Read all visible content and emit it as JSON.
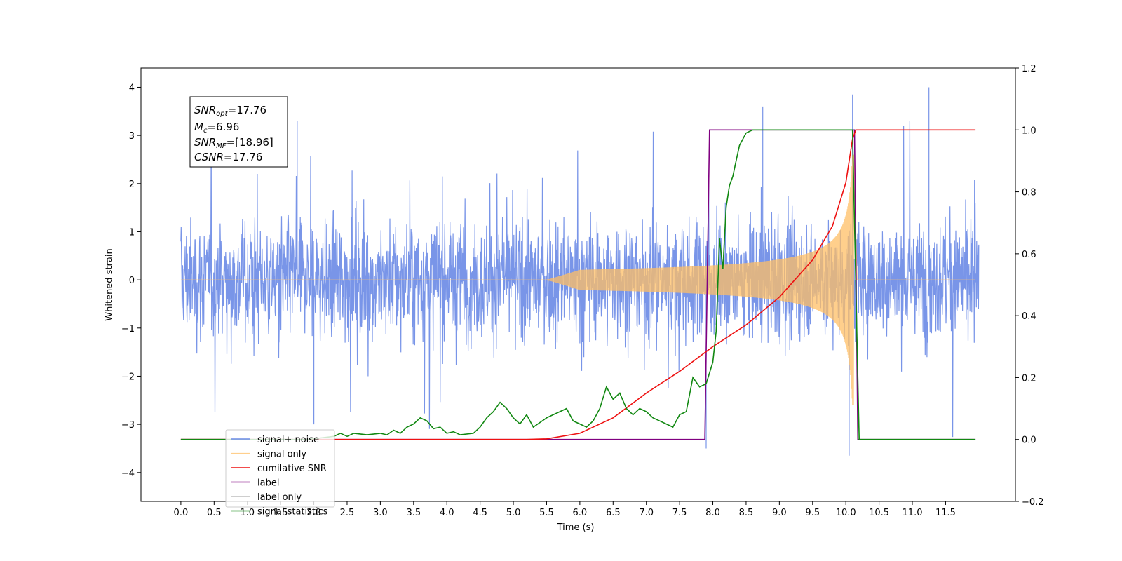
{
  "chart_data": {
    "type": "line",
    "xlabel": "Time (s)",
    "ylabel": "Whitened strain",
    "xlim": [
      -0.6,
      12.55
    ],
    "ylim": [
      -4.6,
      4.4
    ],
    "y2lim": [
      -0.2,
      1.2
    ],
    "grid": false,
    "legend_position": "lower-left",
    "x_ticks": [
      "0.0",
      "0.5",
      "1.0",
      "1.5",
      "2.0",
      "2.5",
      "3.0",
      "3.5",
      "4.0",
      "4.5",
      "5.0",
      "5.5",
      "6.0",
      "6.5",
      "7.0",
      "7.5",
      "8.0",
      "8.5",
      "9.0",
      "9.5",
      "10.0",
      "10.5",
      "11.0",
      "11.5"
    ],
    "y_ticks": [
      "4",
      "3",
      "2",
      "1",
      "0",
      "−1",
      "−2",
      "−3",
      "−4"
    ],
    "y2_ticks": [
      "1.2",
      "1.0",
      "0.8",
      "0.6",
      "0.4",
      "0.2",
      "0.0",
      "−0.2"
    ],
    "annotation": {
      "line1": {
        "main": "SNR",
        "sub": "opt",
        "rest": "=17.76"
      },
      "line2": {
        "main": "M",
        "sub": "c",
        "rest": "=6.96"
      },
      "line3": {
        "main": "SNR",
        "sub": "MF",
        "rest": "=[18.96]"
      },
      "line4": {
        "main": "CSNR",
        "sub": "",
        "rest": "=17.76"
      }
    },
    "series": [
      {
        "name": "signal+ noise",
        "color": "#6a8ae6",
        "axis": "left",
        "description_range": [
          0,
          12
        ],
        "amplitude_sigma": 1.0,
        "spikes": [
          [
            1.75,
            3.3
          ],
          [
            8.75,
            3.6
          ],
          [
            10.1,
            3.85
          ],
          [
            11.25,
            4.0
          ],
          [
            10.05,
            -3.65
          ],
          [
            7.9,
            -3.5
          ],
          [
            2.0,
            -3.0
          ]
        ]
      },
      {
        "name": "signal only",
        "color": "#ffbf66",
        "axis": "left",
        "start": 5.5,
        "merger": 10.12,
        "peak_amplitude": 2.6
      },
      {
        "name": "cumilative SNR",
        "color": "#ee1111",
        "axis": "right",
        "x": [
          0,
          5.2,
          5.5,
          6.0,
          6.5,
          7.0,
          7.5,
          8.0,
          8.5,
          9.0,
          9.5,
          9.8,
          10.0,
          10.1,
          10.15,
          11.95
        ],
        "y": [
          0,
          0,
          0.002,
          0.02,
          0.07,
          0.15,
          0.22,
          0.3,
          0.37,
          0.46,
          0.58,
          0.69,
          0.83,
          0.97,
          1.0,
          1.0
        ]
      },
      {
        "name": "label",
        "color": "#800080",
        "axis": "right",
        "x": [
          0,
          7.88,
          7.95,
          10.13,
          10.18,
          11.95
        ],
        "y": [
          0,
          0,
          1,
          1,
          0,
          0
        ]
      },
      {
        "name": "label only",
        "color": "#b0b0b0",
        "axis": "right",
        "x": [],
        "y": []
      },
      {
        "name": "signal statistics",
        "color": "#118811",
        "axis": "right",
        "x": [
          0,
          1.9,
          2.1,
          2.3,
          2.4,
          2.5,
          2.6,
          2.8,
          3.0,
          3.1,
          3.2,
          3.3,
          3.4,
          3.5,
          3.6,
          3.7,
          3.8,
          3.9,
          4.0,
          4.1,
          4.2,
          4.4,
          4.5,
          4.6,
          4.7,
          4.8,
          4.9,
          5.0,
          5.1,
          5.2,
          5.3,
          5.5,
          5.6,
          5.7,
          5.8,
          5.9,
          6.0,
          6.1,
          6.2,
          6.3,
          6.4,
          6.5,
          6.6,
          6.7,
          6.8,
          6.9,
          7.0,
          7.1,
          7.2,
          7.3,
          7.4,
          7.5,
          7.6,
          7.7,
          7.8,
          7.9,
          8.0,
          8.05,
          8.1,
          8.15,
          8.2,
          8.25,
          8.3,
          8.35,
          8.4,
          8.5,
          8.6,
          8.7,
          8.8,
          9.0,
          10.1,
          10.15,
          10.2,
          11.95
        ],
        "y": [
          0,
          0,
          0.005,
          0.01,
          0.02,
          0.01,
          0.02,
          0.015,
          0.02,
          0.015,
          0.03,
          0.02,
          0.04,
          0.05,
          0.07,
          0.06,
          0.035,
          0.04,
          0.02,
          0.025,
          0.015,
          0.02,
          0.04,
          0.07,
          0.09,
          0.12,
          0.1,
          0.07,
          0.05,
          0.08,
          0.04,
          0.07,
          0.08,
          0.09,
          0.1,
          0.06,
          0.05,
          0.04,
          0.06,
          0.1,
          0.17,
          0.13,
          0.15,
          0.1,
          0.08,
          0.1,
          0.09,
          0.07,
          0.06,
          0.05,
          0.04,
          0.08,
          0.09,
          0.2,
          0.17,
          0.18,
          0.25,
          0.35,
          0.65,
          0.55,
          0.75,
          0.82,
          0.85,
          0.9,
          0.95,
          0.99,
          1.0,
          1.0,
          1.0,
          1.0,
          1.0,
          0.5,
          0.0,
          0.0
        ]
      }
    ]
  }
}
